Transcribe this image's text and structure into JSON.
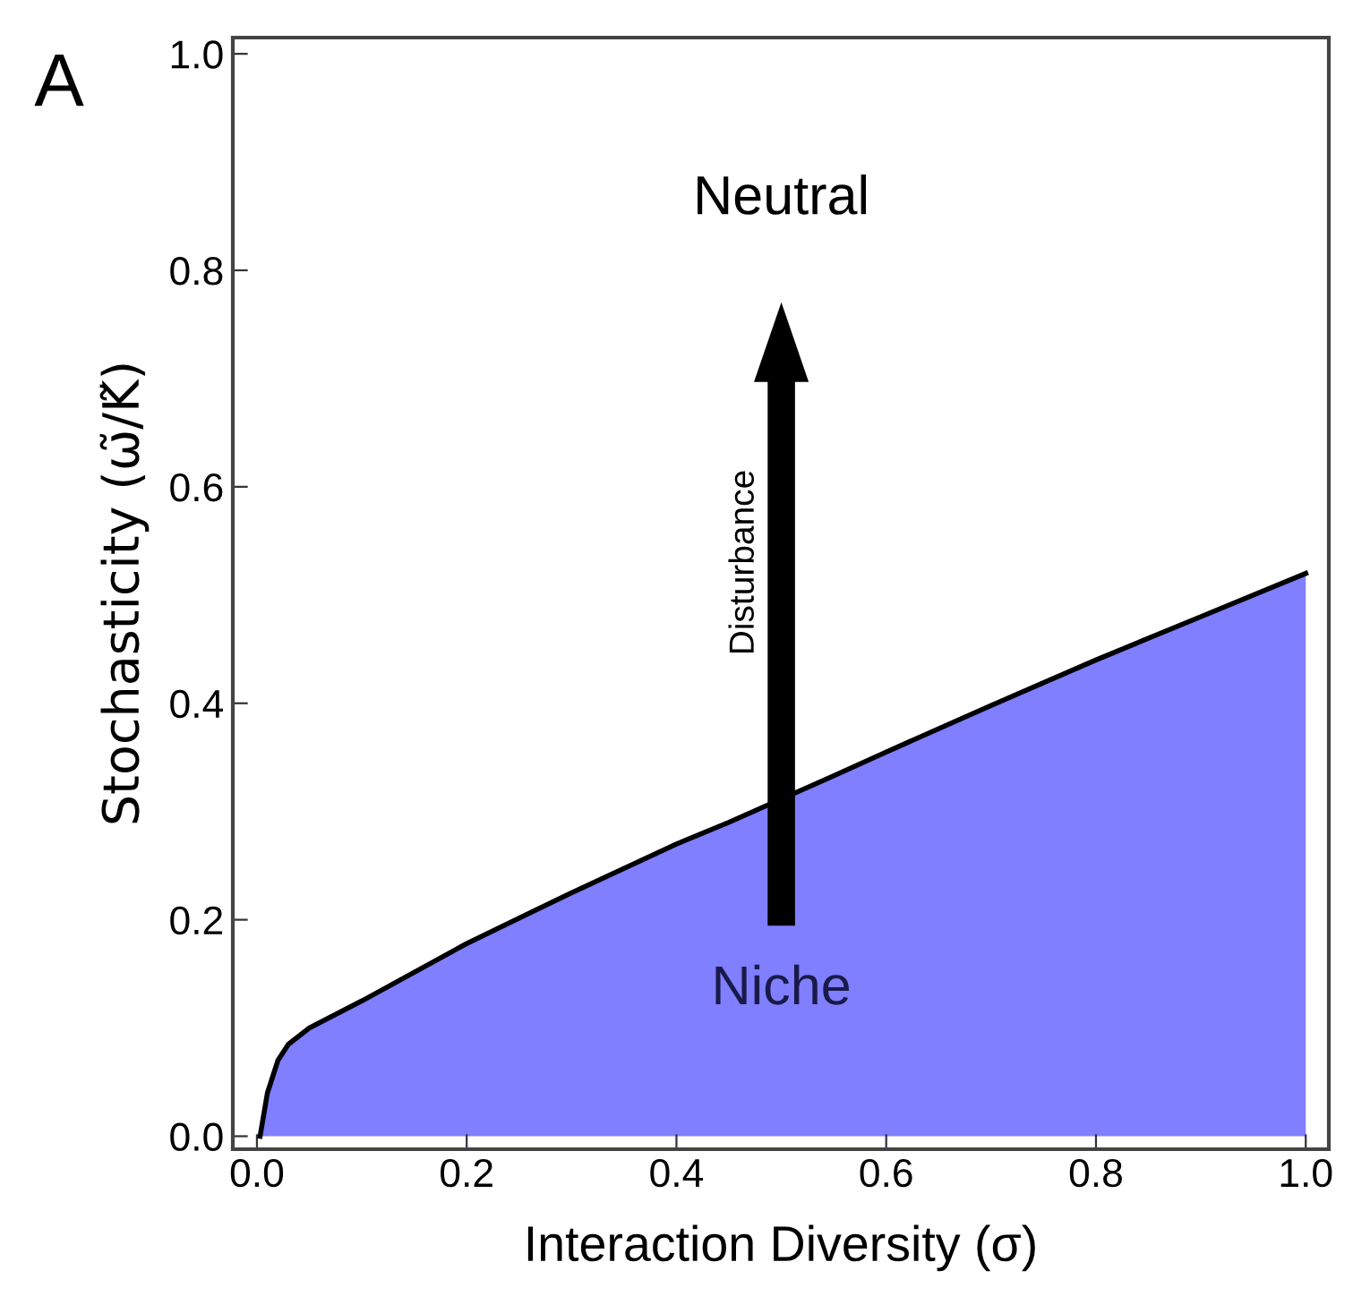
{
  "chart_data": {
    "type": "area",
    "xlabel": "Interaction Diversity (σ)",
    "ylabel": "Stochasticity (ω̃/K̃)",
    "x": [
      0.003,
      0.01,
      0.02,
      0.03,
      0.05,
      0.1,
      0.2,
      0.3,
      0.4,
      0.45,
      0.55,
      0.6,
      0.7,
      0.8,
      0.9,
      1.0
    ],
    "series": [
      {
        "color": "#7f7fff",
        "values": [
          0,
          0.04,
          0.07,
          0.085,
          0.1,
          0.125,
          0.178,
          0.225,
          0.27,
          0.29,
          0.333,
          0.355,
          0.398,
          0.44,
          0.48,
          0.52
        ]
      }
    ],
    "xlim": [
      -0.023,
      1.022
    ],
    "ylim": [
      -0.012,
      1.015
    ],
    "xticks": [
      {
        "value": 0,
        "label": "0.0"
      },
      0.2,
      0.4,
      0.6,
      0.8,
      {
        "value": 1,
        "label": "1.0"
      }
    ],
    "yticks": [
      {
        "value": 0,
        "label": "0.0"
      },
      0.2,
      0.4,
      0.6,
      0.8,
      {
        "value": 1,
        "label": "1.0"
      }
    ],
    "annotations": [
      "A",
      "Neutral",
      "Niche",
      "Disturbance"
    ],
    "grid": false,
    "legend": false
  }
}
